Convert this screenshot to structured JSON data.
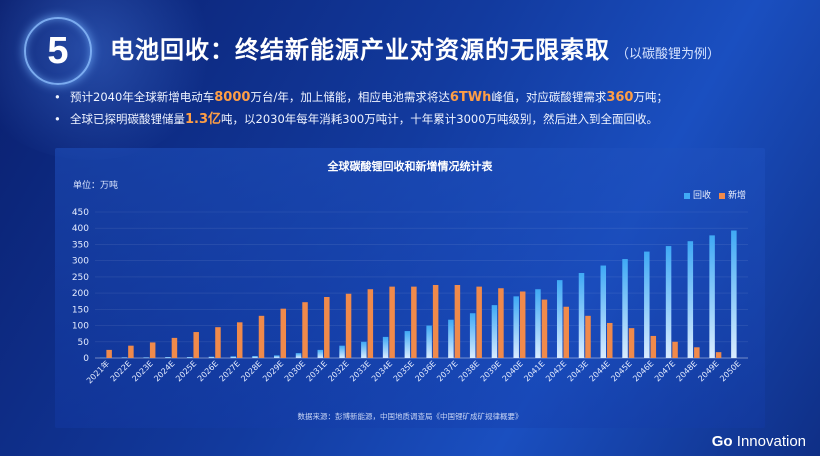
{
  "header": {
    "number": "5",
    "title": "电池回收：终结新能源产业对资源的无限索取",
    "subtitle": "（以碳酸锂为例）"
  },
  "bullets": [
    {
      "bullet": "•",
      "parts": [
        "预计2040年全球新增电动车",
        "8000",
        "万台/年，加上储能，相应电池需求将达",
        "6TWh",
        "峰值，对应碳酸锂需求",
        "360",
        "万吨；"
      ]
    },
    {
      "bullet": "•",
      "parts": [
        "全球已探明碳酸锂储量",
        "1.3亿",
        "吨，以2030年每年消耗300万吨计，十年累计3000万吨级别，然后进入到全面回收。"
      ]
    }
  ],
  "colors": {
    "recycle": "#3fa9f5",
    "recycle_light": "#cfe6ff",
    "new": "#f08a4b",
    "highlight": "#ff9e45"
  },
  "chart_data": {
    "type": "bar",
    "title": "全球碳酸锂回收和新增情况统计表",
    "unit_label": "单位：万吨",
    "ylim": [
      0,
      450
    ],
    "yticks": [
      0,
      50,
      100,
      150,
      200,
      250,
      300,
      350,
      400,
      450
    ],
    "legend_position": "top-right",
    "categories": [
      "2021年",
      "2022E",
      "2023E",
      "2024E",
      "2025E",
      "2026E",
      "2027E",
      "2028E",
      "2029E",
      "2030E",
      "2031E",
      "2032E",
      "2033E",
      "2034E",
      "2035E",
      "2036E",
      "2037E",
      "2038E",
      "2039E",
      "2040E",
      "2041E",
      "2042E",
      "2043E",
      "2044E",
      "2045E",
      "2046E",
      "2047E",
      "2048E",
      "2049E",
      "2050E"
    ],
    "series": [
      {
        "name": "回收",
        "values": [
          1,
          2,
          2,
          3,
          3,
          4,
          5,
          6,
          8,
          15,
          25,
          38,
          50,
          65,
          83,
          100,
          118,
          138,
          163,
          190,
          212,
          240,
          262,
          285,
          305,
          328,
          345,
          360,
          378,
          393
        ]
      },
      {
        "name": "新增",
        "values": [
          25,
          38,
          48,
          62,
          80,
          95,
          110,
          130,
          152,
          172,
          188,
          198,
          212,
          220,
          220,
          225,
          225,
          220,
          215,
          205,
          180,
          158,
          130,
          108,
          92,
          68,
          50,
          33,
          18,
          0
        ]
      }
    ]
  },
  "source": "数据来源：彭博新能源，中国地质调查局《中国锂矿成矿规律概要》",
  "brand": {
    "bold": "Go",
    "rest": " Innovation"
  }
}
